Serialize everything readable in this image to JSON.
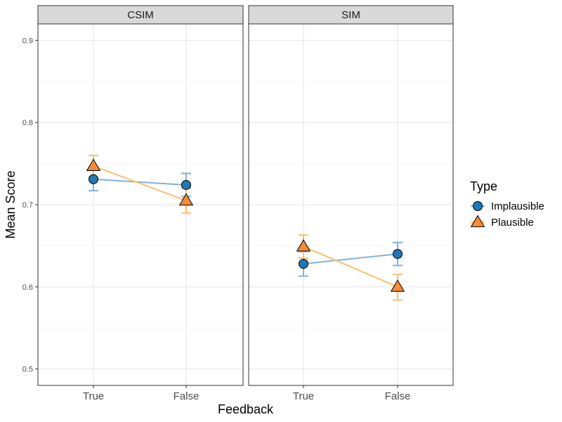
{
  "chart_data": {
    "type": "line",
    "xlabel": "Feedback",
    "ylabel": "Mean Score",
    "categories": [
      "True",
      "False"
    ],
    "ylim": [
      0.48,
      0.92
    ],
    "yticks": [
      "0.5",
      "0.6",
      "0.7",
      "0.8",
      "0.9"
    ],
    "grid": true,
    "legend": {
      "title": "Type",
      "position": "right",
      "entries": [
        "Implausible",
        "Plausible"
      ]
    },
    "colors": {
      "Implausible": {
        "line": "#7fb3d9",
        "marker": "#1f78b4",
        "errorbar": "#7fb3d9"
      },
      "Plausible": {
        "line": "#fdbf6f",
        "marker": "#f58b3a",
        "errorbar": "#fdbf6f"
      }
    },
    "panels": [
      {
        "label": "CSIM",
        "series": [
          {
            "name": "Implausible",
            "values": [
              0.731,
              0.724
            ],
            "lower": [
              0.717,
              0.71
            ],
            "upper": [
              0.745,
              0.738
            ]
          },
          {
            "name": "Plausible",
            "values": [
              0.747,
              0.705
            ],
            "lower": [
              0.734,
              0.69
            ],
            "upper": [
              0.76,
              0.72
            ]
          }
        ]
      },
      {
        "label": "SIM",
        "series": [
          {
            "name": "Implausible",
            "values": [
              0.628,
              0.64
            ],
            "lower": [
              0.613,
              0.626
            ],
            "upper": [
              0.643,
              0.654
            ]
          },
          {
            "name": "Plausible",
            "values": [
              0.649,
              0.6
            ],
            "lower": [
              0.635,
              0.584
            ],
            "upper": [
              0.663,
              0.615
            ]
          }
        ]
      }
    ]
  }
}
